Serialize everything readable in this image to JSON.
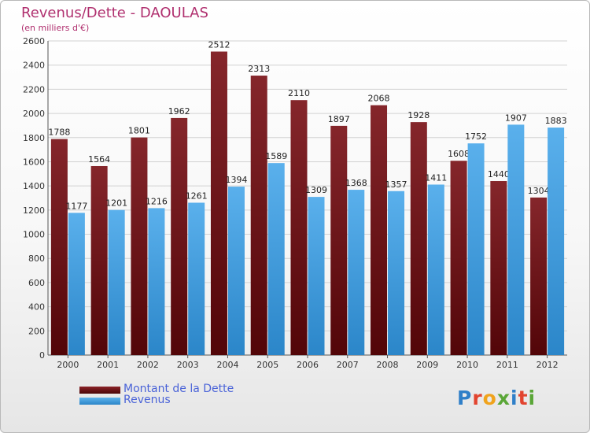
{
  "title": "Revenus/Dette - DAOULAS",
  "subtitle": "(en milliers d'€)",
  "logo": {
    "text": "Proxiti",
    "letter_colors": [
      "#2f7fc8",
      "#e2442f",
      "#f0a31c",
      "#5aa637",
      "#2f7fc8",
      "#e2442f",
      "#5aa637"
    ]
  },
  "colors": {
    "dette": "#7a1a1f",
    "revenus": "#3d9fe2",
    "title": "#b0306f",
    "legend_text": "#4a63d8"
  },
  "chart_data": {
    "type": "bar",
    "title": "Revenus/Dette - DAOULAS",
    "subtitle": "(en milliers d'€)",
    "xlabel": "",
    "ylabel": "",
    "ylim": [
      0,
      2600
    ],
    "yticks": [
      0,
      200,
      400,
      600,
      800,
      1000,
      1200,
      1400,
      1600,
      1800,
      2000,
      2200,
      2400,
      2600
    ],
    "grid": true,
    "legend_position": "bottom-left",
    "categories": [
      "2000",
      "2001",
      "2002",
      "2003",
      "2004",
      "2005",
      "2006",
      "2007",
      "2008",
      "2009",
      "2010",
      "2011",
      "2012"
    ],
    "series": [
      {
        "name": "Montant de la Dette",
        "values": [
          1788,
          1564,
          1801,
          1962,
          2512,
          2313,
          2110,
          1897,
          2068,
          1928,
          1608,
          1440,
          1304
        ],
        "labels": [
          "1788",
          "1564",
          "1801",
          "1962",
          "2512",
          "2313",
          "2110",
          "1897",
          "2068",
          "1928",
          "1608",
          "1440",
          "1304"
        ]
      },
      {
        "name": "Revenus",
        "values": [
          1177,
          1201,
          1216,
          1261,
          1394,
          1589,
          1309,
          1368,
          1357,
          1411,
          1752,
          1907,
          1883
        ],
        "labels": [
          "1177",
          "1201",
          "1216",
          "1261",
          "1394",
          "1589",
          "1309",
          "1368",
          "1357",
          "1411",
          "1752",
          "1907",
          "1883"
        ]
      }
    ]
  }
}
